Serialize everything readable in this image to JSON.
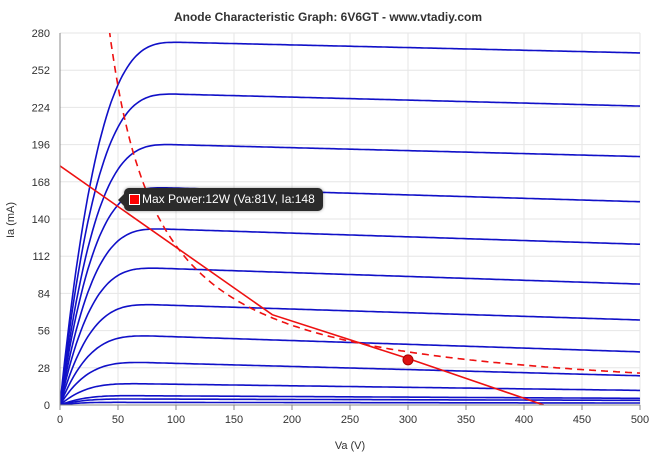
{
  "chart_data": {
    "type": "line",
    "title": "Anode Characteristic Graph: 6V6GT - www.vtadiy.com",
    "xlabel": "Va (V)",
    "ylabel": "Ia (mA)",
    "xlim": [
      0,
      500
    ],
    "ylim": [
      0,
      280
    ],
    "xticks": [
      0,
      50,
      100,
      150,
      200,
      250,
      300,
      350,
      400,
      450,
      500
    ],
    "yticks": [
      0,
      28,
      56,
      84,
      112,
      140,
      168,
      196,
      224,
      252,
      280
    ],
    "grid": true,
    "legend": "none",
    "colors": {
      "curves": "#1010c8",
      "load_line": "#ee1111",
      "power_curve": "#ee1111",
      "point": "#dd1111"
    },
    "anode_curves": [
      {
        "knee_va": 33,
        "ia_max": 2.0,
        "ia_500": 1.5
      },
      {
        "knee_va": 38,
        "ia_max": 4.5,
        "ia_500": 3.5
      },
      {
        "knee_va": 40,
        "ia_max": 7.0,
        "ia_500": 5.0
      },
      {
        "knee_va": 42,
        "ia_max": 16.0,
        "ia_500": 11.0
      },
      {
        "knee_va": 45,
        "ia_max": 32.0,
        "ia_500": 22.0
      },
      {
        "knee_va": 48,
        "ia_max": 52.0,
        "ia_500": 40.0
      },
      {
        "knee_va": 50,
        "ia_max": 75.5,
        "ia_500": 64.0
      },
      {
        "knee_va": 52,
        "ia_max": 103.0,
        "ia_500": 91.0
      },
      {
        "knee_va": 55,
        "ia_max": 132.5,
        "ia_500": 121.0
      },
      {
        "knee_va": 57,
        "ia_max": 163.5,
        "ia_500": 153.0
      },
      {
        "knee_va": 60,
        "ia_max": 196.0,
        "ia_500": 187.0
      },
      {
        "knee_va": 62,
        "ia_max": 234.0,
        "ia_500": 225.0
      },
      {
        "knee_va": 64,
        "ia_max": 273.0,
        "ia_500": 265.0
      }
    ],
    "load_line": {
      "points": [
        [
          0,
          180
        ],
        [
          183,
          68
        ],
        [
          300,
          35
        ],
        [
          417,
          0
        ]
      ]
    },
    "max_power_curve": {
      "watts": 12,
      "from_va": 40,
      "to_va": 500
    },
    "operating_point": {
      "va": 300,
      "ia": 34
    },
    "tooltip": {
      "label": "Max Power:12W (Va:81V, Ia:148",
      "anchor": {
        "va": 50,
        "ia": 154
      }
    }
  }
}
